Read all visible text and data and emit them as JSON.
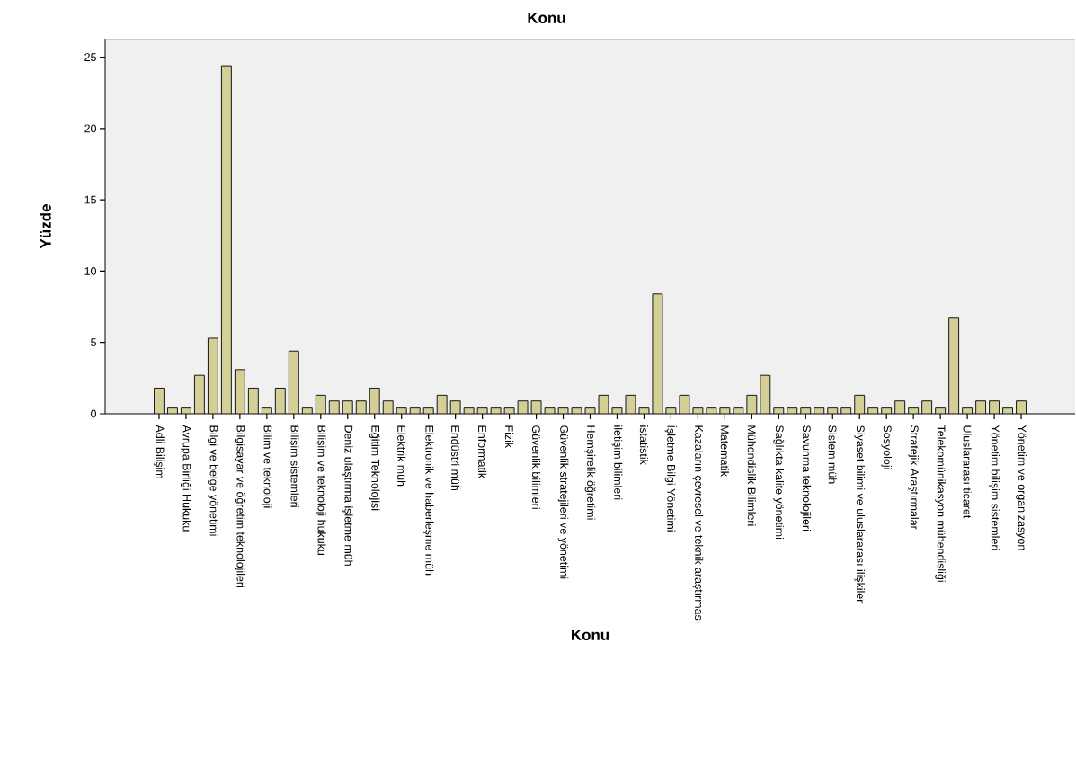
{
  "chart_data": {
    "type": "bar",
    "title": "Konu",
    "xlabel": "Konu",
    "ylabel": "Yüzde",
    "color": "#d3cf97",
    "categories": [
      "Adli Bilişim",
      null,
      "Avrupa Birliği Hukuku",
      null,
      "Bilgi ve belge yönetimi",
      null,
      "Bilgisayar ve öğretim teknolojileri",
      null,
      "Bilim ve teknoloji",
      null,
      "Bilişim sistemleri",
      null,
      "Bilişim ve teknoloji hukuku",
      null,
      "Deniz ulaştırma işletme müh",
      null,
      "Eğitim Teknolojisi",
      null,
      "Elektrik müh",
      null,
      "Elektronik ve haberleşme müh",
      null,
      "Endüstri müh",
      null,
      "Enformatik",
      null,
      "Fizik",
      null,
      "Güvenlik bilimleri",
      null,
      "Güvenlik stratejileri ve yönetimi",
      null,
      "Hemşirelik öğretimi",
      null,
      "iletişim bilimleri",
      null,
      "istatistik",
      null,
      "İşletme Bilgi Yönetimi",
      null,
      "Kazaların çevresel ve teknik araştırması",
      null,
      "Matematik",
      null,
      "Mühendislik Bilimleri",
      null,
      "Sağlıkta kalite yönetimi",
      null,
      "Savunma teknolojileri",
      null,
      "Sistem müh",
      null,
      "Siyaset bilimi ve uluslararası ilişkiler",
      null,
      "Sosyoloji",
      null,
      "Stratejik Araştırmalar",
      null,
      "Telekomünikasyon mühendisliği",
      null,
      "Uluslararası ticaret",
      null,
      "Yönetim bilişim sistemleri",
      null,
      "Yönetim ve organizasyon"
    ],
    "values": [
      1.8,
      0.4,
      0.4,
      2.7,
      5.3,
      24.4,
      3.1,
      1.8,
      0.4,
      1.8,
      4.4,
      0.4,
      1.3,
      0.9,
      0.9,
      0.9,
      1.8,
      0.9,
      0.4,
      0.4,
      0.4,
      1.3,
      0.9,
      0.4,
      0.4,
      0.4,
      0.4,
      0.9,
      0.9,
      0.4,
      0.4,
      0.4,
      0.4,
      1.3,
      0.4,
      1.3,
      0.4,
      8.4,
      0.4,
      1.3,
      0.4,
      0.4,
      0.4,
      0.4,
      1.3,
      2.7,
      0.4,
      0.4,
      0.4,
      0.4,
      0.4,
      0.4,
      1.3,
      0.4,
      0.4,
      0.9,
      0.4,
      0.9,
      0.4,
      6.7,
      0.4,
      0.9,
      0.9,
      0.4,
      0.9
    ],
    "ylim": [
      0,
      26.3
    ],
    "yticks": [
      0,
      5,
      10,
      15,
      20,
      25
    ],
    "grid": false
  }
}
